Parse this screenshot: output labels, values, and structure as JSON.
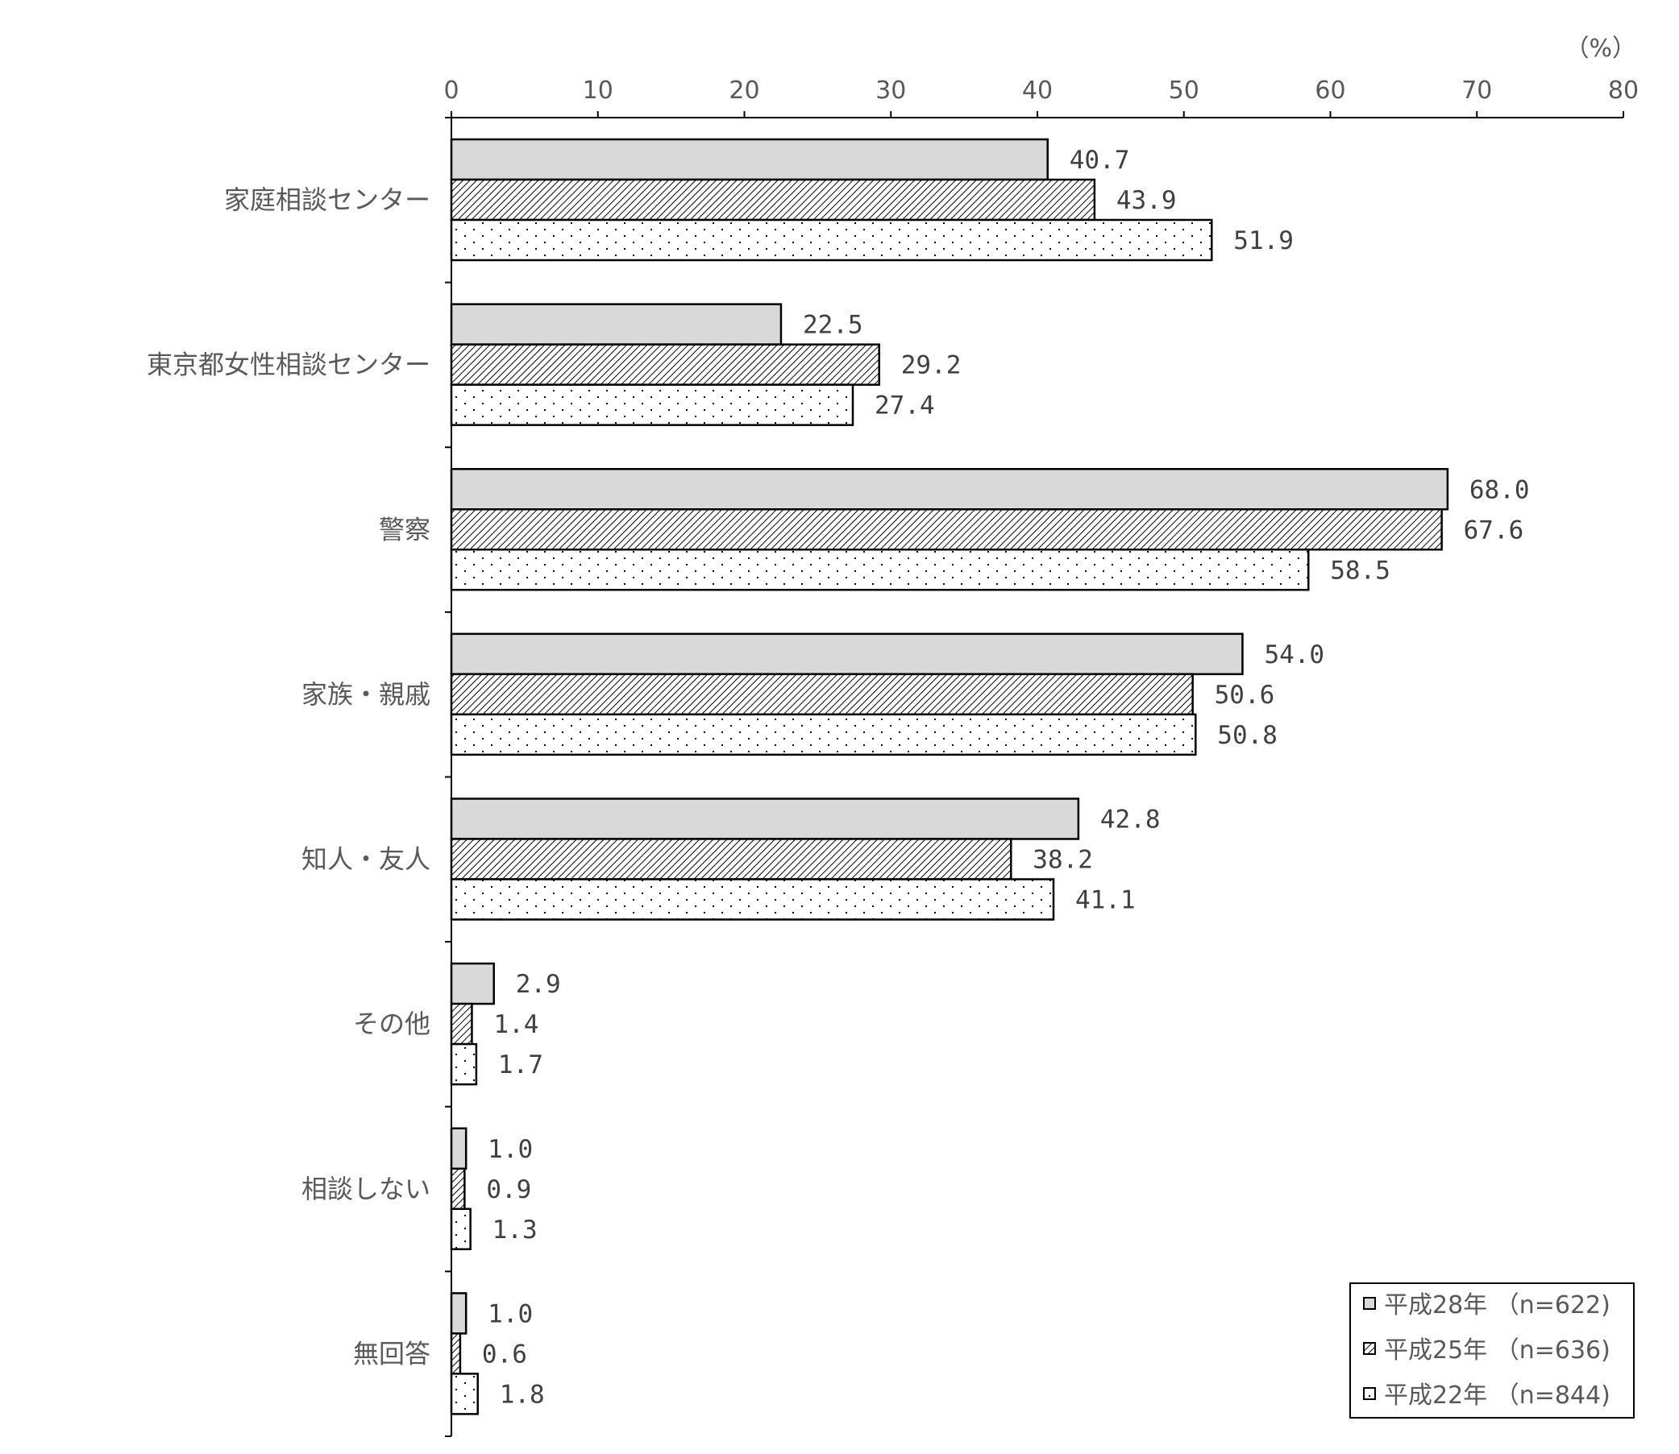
{
  "chart_data": {
    "type": "bar",
    "orientation": "horizontal",
    "unit": "（%）",
    "xlim": [
      0,
      80
    ],
    "x_ticks": [
      "0",
      "10",
      "20",
      "30",
      "40",
      "50",
      "60",
      "70",
      "80"
    ],
    "categories": [
      "家庭相談センター",
      "東京都女性相談センター",
      "警察",
      "家族・親戚",
      "知人・友人",
      "その他",
      "相談しない",
      "無回答"
    ],
    "series": [
      {
        "name": "平成28年 （n=622)",
        "pattern": "solid-gray",
        "color": "#d9d9d9",
        "values": [
          40.7,
          22.5,
          68.0,
          54.0,
          42.8,
          2.9,
          1.0,
          1.0
        ],
        "labels": [
          "40.7",
          "22.5",
          "68.0",
          "54.0",
          "42.8",
          "2.9",
          "1.0",
          "1.0"
        ]
      },
      {
        "name": "平成25年 （n=636)",
        "pattern": "diagonal-hatch",
        "color": "#ffffff",
        "values": [
          43.9,
          29.2,
          67.6,
          50.6,
          38.2,
          1.4,
          0.9,
          0.6
        ],
        "labels": [
          "43.9",
          "29.2",
          "67.6",
          "50.6",
          "38.2",
          "1.4",
          "0.9",
          "0.6"
        ]
      },
      {
        "name": "平成22年 （n=844)",
        "pattern": "dots",
        "color": "#ffffff",
        "values": [
          51.9,
          27.4,
          58.5,
          50.8,
          41.1,
          1.7,
          1.3,
          1.8
        ],
        "labels": [
          "51.9",
          "27.4",
          "58.5",
          "50.8",
          "41.1",
          "1.7",
          "1.3",
          "1.8"
        ]
      }
    ],
    "grid": false,
    "legend_position": "bottom-right",
    "axis_position": "top"
  }
}
